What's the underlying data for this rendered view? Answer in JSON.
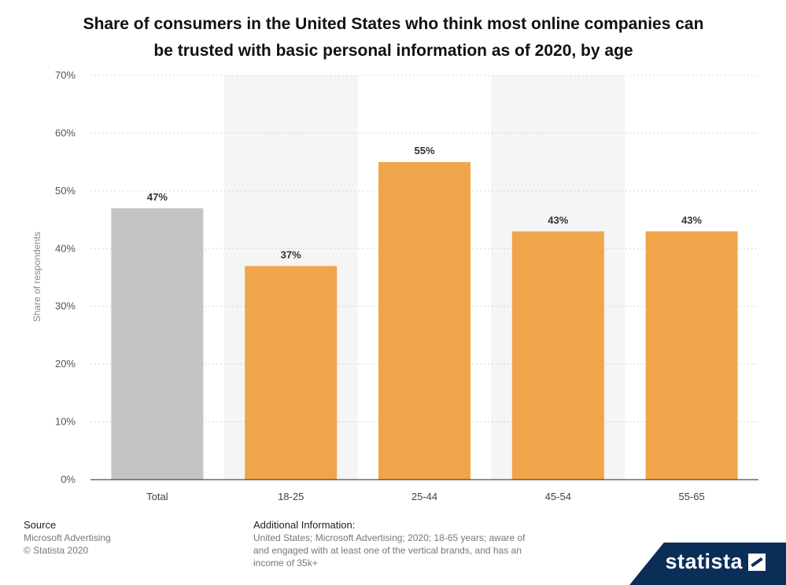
{
  "title_lines": [
    "Share of consumers in the United States who think most online companies can",
    "be trusted with basic personal information as of 2020, by age"
  ],
  "colors": {
    "total_bar": "#c4c4c4",
    "age_bar": "#f0a54a",
    "grid": "#d4d4d4",
    "axis": "#222222",
    "band": "#f5f5f5"
  },
  "chart_data": {
    "type": "bar",
    "title": "Share of consumers in the United States who think most online companies can be trusted with basic personal information as of 2020, by age",
    "categories": [
      "Total",
      "18-25",
      "25-44",
      "45-54",
      "55-65"
    ],
    "values": [
      47,
      37,
      55,
      43,
      43
    ],
    "value_labels": [
      "47%",
      "37%",
      "55%",
      "43%",
      "43%"
    ],
    "ylabel": "Share of respondents",
    "ylim": [
      0,
      70
    ],
    "yticks": [
      0,
      10,
      20,
      30,
      40,
      50,
      60,
      70
    ],
    "ytick_labels": [
      "0%",
      "10%",
      "20%",
      "30%",
      "40%",
      "50%",
      "60%",
      "70%"
    ],
    "grid": true
  },
  "footer": {
    "source_head": "Source",
    "source_lines": [
      "Microsoft Advertising",
      "© Statista 2020"
    ],
    "info_head": "Additional Information:",
    "info_lines": [
      "United States; Microsoft Advertising; 2020; 18-65 years; aware of",
      "and engaged with at least one of the vertical brands, and has an",
      "income of 35k+"
    ]
  },
  "logo": {
    "text": "statista"
  }
}
